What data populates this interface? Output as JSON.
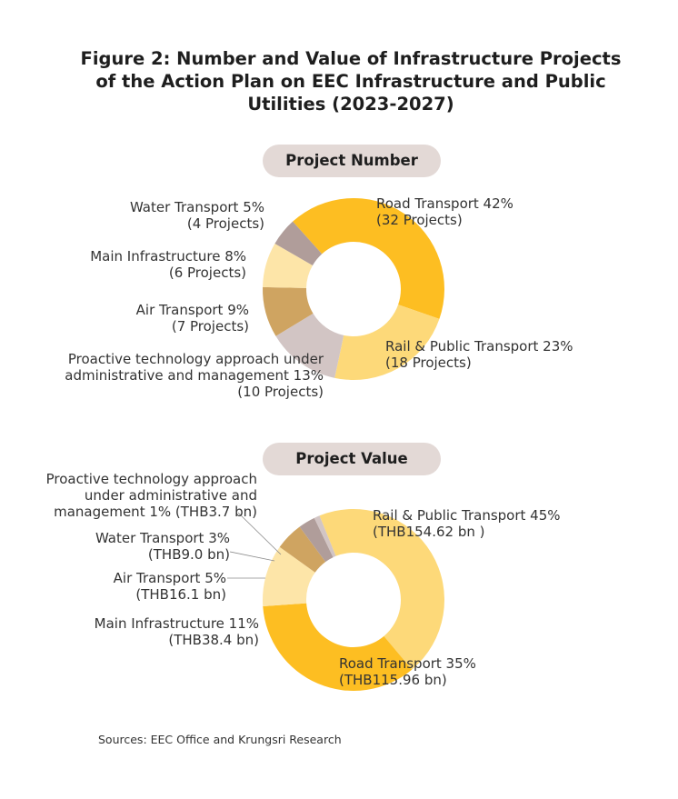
{
  "title_lines": [
    "Figure 2:  Number and Value of Infrastructure Projects",
    "of the Action Plan on EEC Infrastructure and Public",
    "Utilities (2023-2027)"
  ],
  "colors": {
    "road": "#fdbe22",
    "rail": "#fdd979",
    "tech": "#d2c5c4",
    "air": "#cfa461",
    "main": "#fde5a8",
    "water": "#b09d9a",
    "pill": "#e3d9d6"
  },
  "chart_data": [
    {
      "type": "pie",
      "title": "Project Number",
      "donut": true,
      "slices": [
        {
          "name": "Road Transport",
          "percent": 42,
          "projects": 32,
          "color_key": "road",
          "label_lines": [
            "Road Transport 42%",
            "(32 Projects)"
          ]
        },
        {
          "name": "Rail & Public Transport",
          "percent": 23,
          "projects": 18,
          "color_key": "rail",
          "label_lines": [
            "Rail & Public Transport 23%",
            "(18 Projects)"
          ]
        },
        {
          "name": "Proactive technology approach under administrative and management",
          "percent": 13,
          "projects": 10,
          "color_key": "tech",
          "label_lines": [
            "Proactive technology approach under",
            "administrative and management 13%",
            "(10 Projects)"
          ]
        },
        {
          "name": "Air Transport",
          "percent": 9,
          "projects": 7,
          "color_key": "air",
          "label_lines": [
            "Air Transport 9%",
            "(7 Projects)"
          ]
        },
        {
          "name": "Main Infrastructure",
          "percent": 8,
          "projects": 6,
          "color_key": "main",
          "label_lines": [
            "Main Infrastructure 8%",
            "(6 Projects)"
          ]
        },
        {
          "name": "Water Transport",
          "percent": 5,
          "projects": 4,
          "color_key": "water",
          "label_lines": [
            "Water Transport 5%",
            "(4 Projects)"
          ]
        }
      ]
    },
    {
      "type": "pie",
      "title": "Project Value",
      "donut": true,
      "slices": [
        {
          "name": "Rail & Public Transport",
          "percent": 45,
          "value_bn_thb": 154.62,
          "color_key": "rail",
          "label_lines": [
            "Rail & Public Transport 45%",
            "(THB154.62 bn   )"
          ]
        },
        {
          "name": "Road Transport",
          "percent": 35,
          "value_bn_thb": 115.96,
          "color_key": "road",
          "label_lines": [
            "Road Transport 35%",
            "(THB115.96 bn)"
          ]
        },
        {
          "name": "Main Infrastructure",
          "percent": 11,
          "value_bn_thb": 38.4,
          "color_key": "main",
          "label_lines": [
            "Main Infrastructure 11%",
            "(THB38.4 bn)"
          ]
        },
        {
          "name": "Air Transport",
          "percent": 5,
          "value_bn_thb": 16.1,
          "color_key": "air",
          "label_lines": [
            "Air Transport 5%",
            "(THB16.1 bn)"
          ]
        },
        {
          "name": "Water Transport",
          "percent": 3,
          "value_bn_thb": 9.0,
          "color_key": "water",
          "label_lines": [
            "Water Transport 3%",
            "(THB9.0 bn)"
          ]
        },
        {
          "name": "Proactive technology approach under administrative and management",
          "percent": 1,
          "value_bn_thb": 3.7,
          "color_key": "tech",
          "label_lines": [
            "Proactive technology approach",
            "under administrative and",
            "management 1% (THB3.7 bn)"
          ]
        }
      ]
    }
  ],
  "source": "Sources: EEC Office and   Krungsri Research"
}
